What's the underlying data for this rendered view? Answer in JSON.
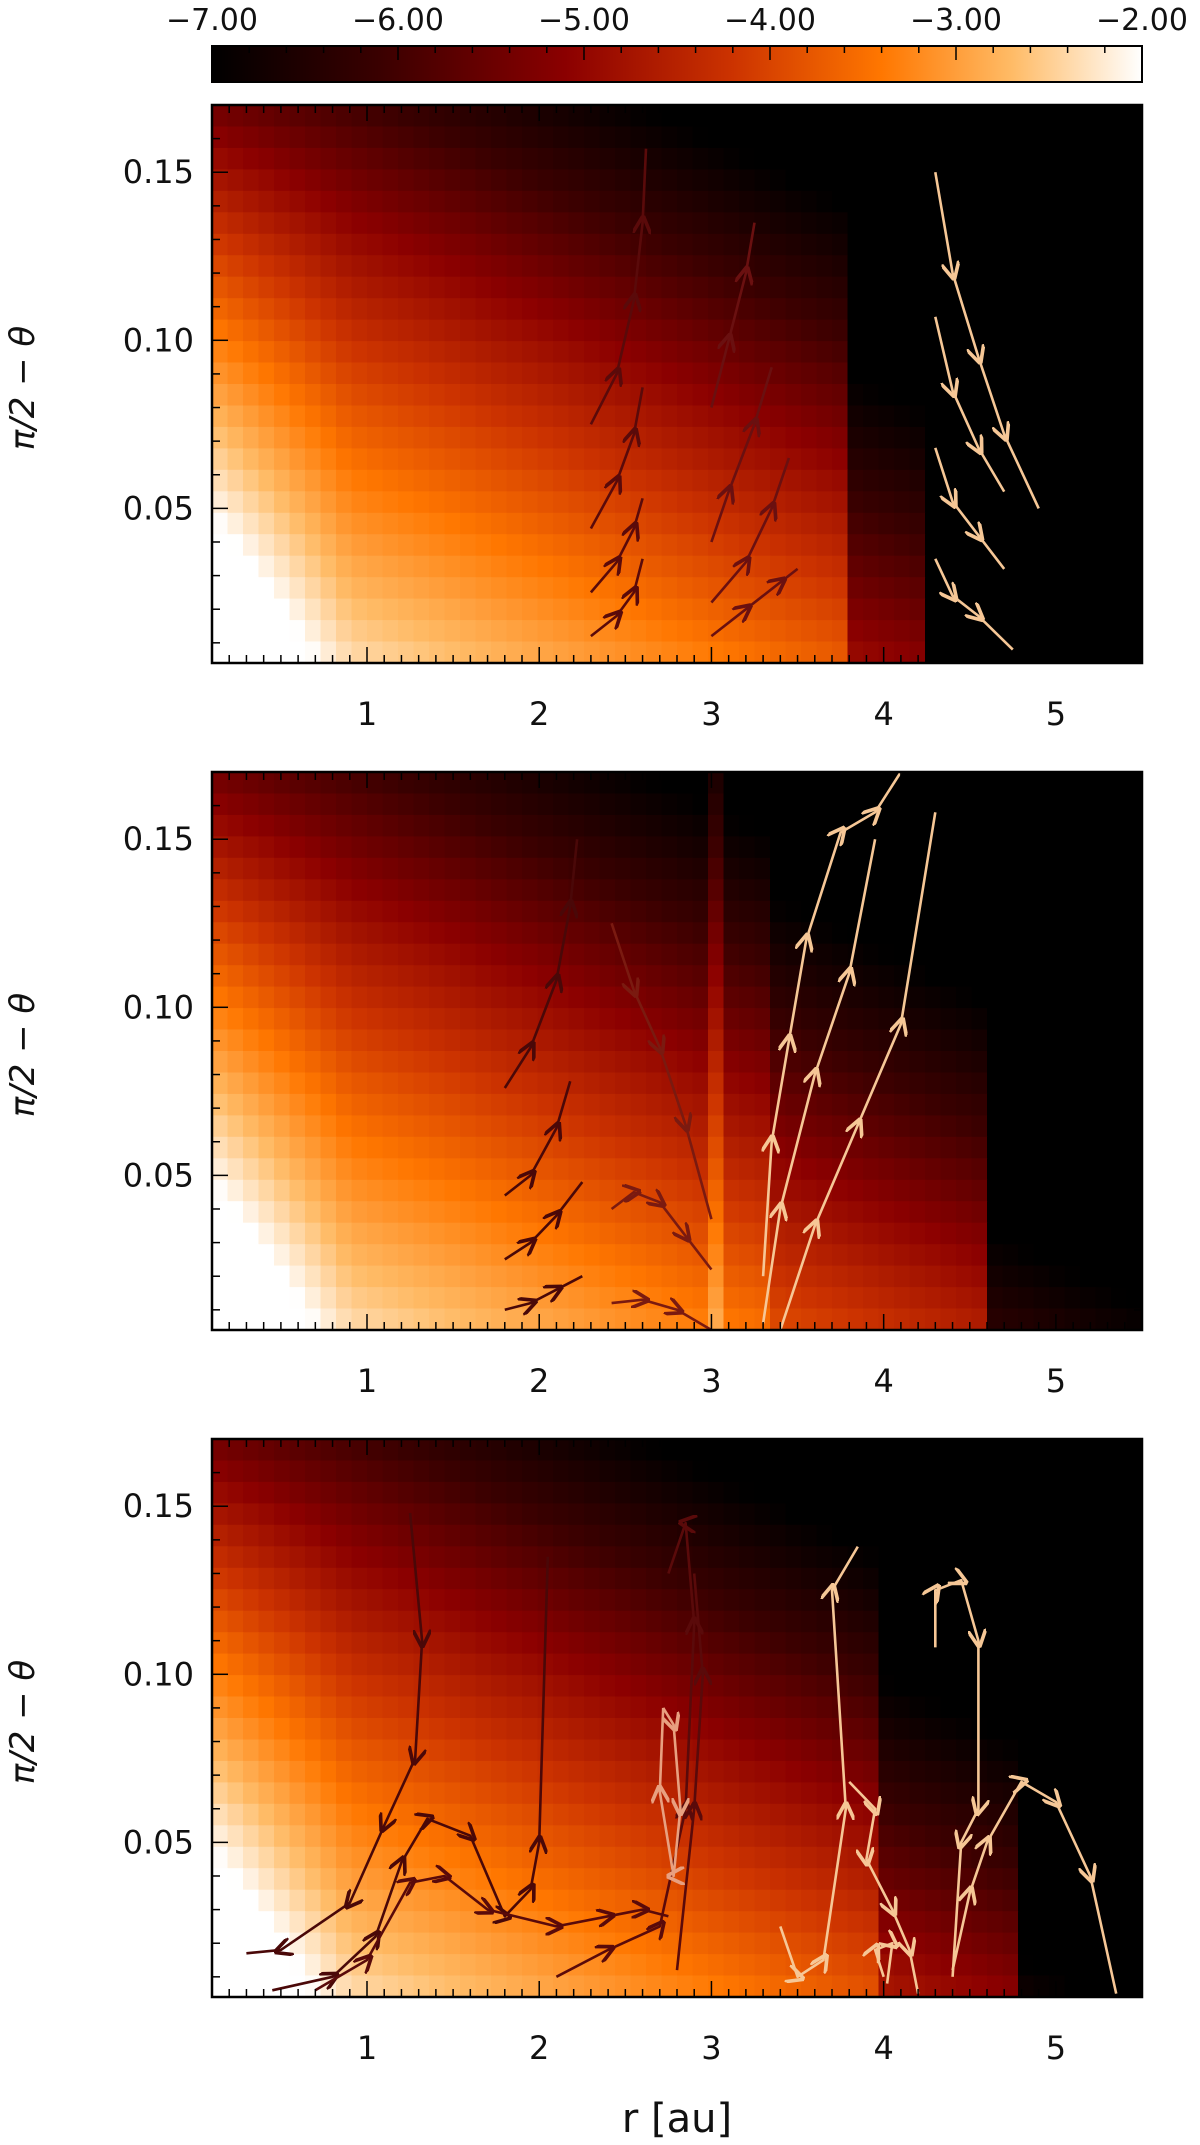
{
  "colorbar": {
    "tick_labels": [
      "−7.00",
      "−6.00",
      "−5.00",
      "−4.00",
      "−3.00",
      "−2.00"
    ],
    "range": [
      -7.0,
      -2.0
    ],
    "colors": [
      "#000000",
      "#3a0000",
      "#8b0000",
      "#cc3300",
      "#ff7700",
      "#ffbb66",
      "#ffffff"
    ]
  },
  "chart_data": [
    {
      "type": "heatmap",
      "panel": "top",
      "xlabel": "",
      "ylabel": "π/2 − θ",
      "xlim": [
        0.1,
        5.5
      ],
      "ylim": [
        0.004,
        0.17
      ],
      "x_ticks": [
        1,
        2,
        3,
        4,
        5
      ],
      "x_tick_labels": [
        "1",
        "2",
        "3",
        "4",
        "5"
      ],
      "y_ticks": [
        0.05,
        0.1,
        0.15
      ],
      "y_tick_labels": [
        "0.05",
        "0.10",
        "0.15"
      ],
      "streamlines": [
        {
          "color": "#5a0a0a",
          "points": [
            [
              2.3,
              0.075
            ],
            [
              2.45,
              0.09
            ],
            [
              2.55,
              0.112
            ],
            [
              2.6,
              0.135
            ],
            [
              2.62,
              0.157
            ]
          ]
        },
        {
          "color": "#5a0a0a",
          "points": [
            [
              2.3,
              0.044
            ],
            [
              2.45,
              0.058
            ],
            [
              2.55,
              0.072
            ],
            [
              2.6,
              0.086
            ]
          ]
        },
        {
          "color": "#5a0a0a",
          "points": [
            [
              2.3,
              0.025
            ],
            [
              2.45,
              0.034
            ],
            [
              2.55,
              0.044
            ],
            [
              2.6,
              0.053
            ]
          ]
        },
        {
          "color": "#5a0a0a",
          "points": [
            [
              2.3,
              0.012
            ],
            [
              2.45,
              0.018
            ],
            [
              2.55,
              0.025
            ],
            [
              2.6,
              0.035
            ]
          ]
        },
        {
          "color": "#6a1010",
          "points": [
            [
              3.0,
              0.08
            ],
            [
              3.1,
              0.1
            ],
            [
              3.2,
              0.12
            ],
            [
              3.25,
              0.135
            ]
          ]
        },
        {
          "color": "#6a1010",
          "points": [
            [
              3.0,
              0.04
            ],
            [
              3.1,
              0.055
            ],
            [
              3.25,
              0.075
            ],
            [
              3.35,
              0.092
            ]
          ]
        },
        {
          "color": "#6a1010",
          "points": [
            [
              3.0,
              0.022
            ],
            [
              3.2,
              0.034
            ],
            [
              3.35,
              0.05
            ],
            [
              3.45,
              0.065
            ]
          ]
        },
        {
          "color": "#6a1010",
          "points": [
            [
              3.0,
              0.012
            ],
            [
              3.2,
              0.02
            ],
            [
              3.4,
              0.028
            ],
            [
              3.5,
              0.032
            ]
          ]
        },
        {
          "color": "#f6c796",
          "points": [
            [
              4.3,
              0.15
            ],
            [
              4.4,
              0.12
            ],
            [
              4.55,
              0.095
            ],
            [
              4.7,
              0.072
            ],
            [
              4.9,
              0.05
            ]
          ]
        },
        {
          "color": "#f6c796",
          "points": [
            [
              4.3,
              0.107
            ],
            [
              4.4,
              0.085
            ],
            [
              4.55,
              0.068
            ],
            [
              4.7,
              0.055
            ]
          ]
        },
        {
          "color": "#f6c796",
          "points": [
            [
              4.3,
              0.068
            ],
            [
              4.4,
              0.052
            ],
            [
              4.55,
              0.042
            ],
            [
              4.7,
              0.032
            ]
          ]
        },
        {
          "color": "#f6c796",
          "points": [
            [
              4.3,
              0.035
            ],
            [
              4.4,
              0.024
            ],
            [
              4.55,
              0.018
            ],
            [
              4.75,
              0.008
            ]
          ]
        }
      ]
    },
    {
      "type": "heatmap",
      "panel": "middle",
      "xlabel": "",
      "ylabel": "π/2 − θ",
      "xlim": [
        0.1,
        5.5
      ],
      "ylim": [
        0.004,
        0.17
      ],
      "x_ticks": [
        1,
        2,
        3,
        4,
        5
      ],
      "x_tick_labels": [
        "1",
        "2",
        "3",
        "4",
        "5"
      ],
      "y_ticks": [
        0.05,
        0.1,
        0.15
      ],
      "y_tick_labels": [
        "0.05",
        "0.10",
        "0.15"
      ],
      "streamlines": [
        {
          "color": "#4a0808",
          "points": [
            [
              1.8,
              0.076
            ],
            [
              1.95,
              0.088
            ],
            [
              2.1,
              0.108
            ],
            [
              2.18,
              0.13
            ],
            [
              2.22,
              0.15
            ]
          ]
        },
        {
          "color": "#4a0808",
          "points": [
            [
              1.8,
              0.044
            ],
            [
              1.95,
              0.05
            ],
            [
              2.1,
              0.064
            ],
            [
              2.18,
              0.078
            ]
          ]
        },
        {
          "color": "#4a0808",
          "points": [
            [
              1.8,
              0.025
            ],
            [
              1.95,
              0.03
            ],
            [
              2.1,
              0.038
            ],
            [
              2.25,
              0.048
            ]
          ]
        },
        {
          "color": "#4a0808",
          "points": [
            [
              1.8,
              0.01
            ],
            [
              1.95,
              0.012
            ],
            [
              2.1,
              0.016
            ],
            [
              2.25,
              0.02
            ]
          ]
        },
        {
          "color": "#7a1a10",
          "points": [
            [
              2.42,
              0.125
            ],
            [
              2.55,
              0.105
            ],
            [
              2.7,
              0.088
            ],
            [
              2.85,
              0.065
            ],
            [
              3.0,
              0.037
            ]
          ]
        },
        {
          "color": "#7a1a10",
          "points": [
            [
              2.42,
              0.04
            ],
            [
              2.55,
              0.045
            ],
            [
              2.7,
              0.042
            ],
            [
              2.85,
              0.032
            ],
            [
              3.0,
              0.022
            ]
          ]
        },
        {
          "color": "#7a1a10",
          "points": [
            [
              2.42,
              0.012
            ],
            [
              2.6,
              0.013
            ],
            [
              2.8,
              0.01
            ],
            [
              3.0,
              0.004
            ]
          ]
        },
        {
          "color": "#f6c796",
          "points": [
            [
              3.3,
              0.02
            ],
            [
              3.35,
              0.06
            ],
            [
              3.45,
              0.09
            ],
            [
              3.55,
              0.12
            ],
            [
              3.75,
              0.152
            ],
            [
              3.95,
              0.158
            ],
            [
              4.1,
              0.17
            ]
          ]
        },
        {
          "color": "#f6c796",
          "points": [
            [
              3.3,
              0.006
            ],
            [
              3.4,
              0.04
            ],
            [
              3.6,
              0.08
            ],
            [
              3.8,
              0.11
            ],
            [
              3.95,
              0.15
            ]
          ]
        },
        {
          "color": "#f6c796",
          "points": [
            [
              3.4,
              0.004
            ],
            [
              3.6,
              0.035
            ],
            [
              3.85,
              0.065
            ],
            [
              4.1,
              0.095
            ],
            [
              4.3,
              0.158
            ]
          ]
        }
      ]
    },
    {
      "type": "heatmap",
      "panel": "bottom",
      "xlabel": "r [au]",
      "ylabel": "π/2 − θ",
      "xlim": [
        0.1,
        5.5
      ],
      "ylim": [
        0.004,
        0.17
      ],
      "x_ticks": [
        1,
        2,
        3,
        4,
        5
      ],
      "x_tick_labels": [
        "1",
        "2",
        "3",
        "4",
        "5"
      ],
      "y_ticks": [
        0.05,
        0.1,
        0.15
      ],
      "y_tick_labels": [
        "0.05",
        "0.10",
        "0.15"
      ],
      "streamlines": [
        {
          "color": "#4a0808",
          "points": [
            [
              1.25,
              0.148
            ],
            [
              1.32,
              0.11
            ],
            [
              1.28,
              0.075
            ],
            [
              1.1,
              0.055
            ],
            [
              0.9,
              0.032
            ],
            [
              0.5,
              0.018
            ],
            [
              0.3,
              0.017
            ]
          ]
        },
        {
          "color": "#4a0808",
          "points": [
            [
              0.45,
              0.006
            ],
            [
              0.8,
              0.01
            ],
            [
              1.05,
              0.022
            ],
            [
              1.2,
              0.044
            ],
            [
              1.35,
              0.057
            ],
            [
              1.6,
              0.052
            ],
            [
              1.8,
              0.028
            ],
            [
              1.95,
              0.036
            ],
            [
              2.0,
              0.05
            ],
            [
              2.05,
              0.135
            ]
          ]
        },
        {
          "color": "#5a0a0a",
          "points": [
            [
              0.7,
              0.006
            ],
            [
              1.0,
              0.015
            ],
            [
              1.25,
              0.038
            ],
            [
              1.45,
              0.04
            ],
            [
              1.7,
              0.03
            ],
            [
              2.1,
              0.025
            ],
            [
              2.4,
              0.028
            ],
            [
              2.6,
              0.03
            ],
            [
              2.75,
              0.028
            ]
          ]
        },
        {
          "color": "#5a0a0a",
          "points": [
            [
              2.1,
              0.01
            ],
            [
              2.4,
              0.018
            ],
            [
              2.7,
              0.025
            ],
            [
              2.85,
              0.06
            ],
            [
              2.9,
              0.115
            ],
            [
              2.85,
              0.145
            ],
            [
              2.75,
              0.13
            ]
          ]
        },
        {
          "color": "#5a0a0a",
          "points": [
            [
              2.8,
              0.012
            ],
            [
              2.9,
              0.06
            ],
            [
              2.95,
              0.1
            ],
            [
              2.9,
              0.13
            ]
          ]
        },
        {
          "color": "#e8a080",
          "points": [
            [
              2.72,
              0.09
            ],
            [
              2.78,
              0.085
            ],
            [
              2.82,
              0.06
            ],
            [
              2.78,
              0.04
            ],
            [
              2.7,
              0.065
            ],
            [
              2.72,
              0.09
            ]
          ]
        },
        {
          "color": "#f6c796",
          "points": [
            [
              3.4,
              0.025
            ],
            [
              3.5,
              0.01
            ],
            [
              3.65,
              0.015
            ],
            [
              3.78,
              0.06
            ],
            [
              3.7,
              0.125
            ],
            [
              3.85,
              0.138
            ]
          ]
        },
        {
          "color": "#f6c796",
          "points": [
            [
              3.8,
              0.068
            ],
            [
              3.95,
              0.06
            ],
            [
              3.9,
              0.045
            ],
            [
              4.05,
              0.03
            ],
            [
              4.15,
              0.018
            ],
            [
              4.2,
              0.005
            ]
          ]
        },
        {
          "color": "#f6c796",
          "points": [
            [
              4.0,
              0.01
            ],
            [
              3.95,
              0.018
            ],
            [
              4.05,
              0.02
            ],
            [
              4.02,
              0.008
            ]
          ]
        },
        {
          "color": "#f6c796",
          "points": [
            [
              4.3,
              0.108
            ],
            [
              4.3,
              0.125
            ],
            [
              4.45,
              0.128
            ],
            [
              4.55,
              0.11
            ],
            [
              4.55,
              0.06
            ],
            [
              4.45,
              0.05
            ],
            [
              4.4,
              0.01
            ]
          ]
        },
        {
          "color": "#f6c796",
          "points": [
            [
              4.4,
              0.012
            ],
            [
              4.5,
              0.035
            ],
            [
              4.6,
              0.05
            ],
            [
              4.8,
              0.068
            ],
            [
              5.0,
              0.062
            ],
            [
              5.2,
              0.04
            ],
            [
              5.35,
              0.005
            ]
          ]
        }
      ]
    }
  ]
}
